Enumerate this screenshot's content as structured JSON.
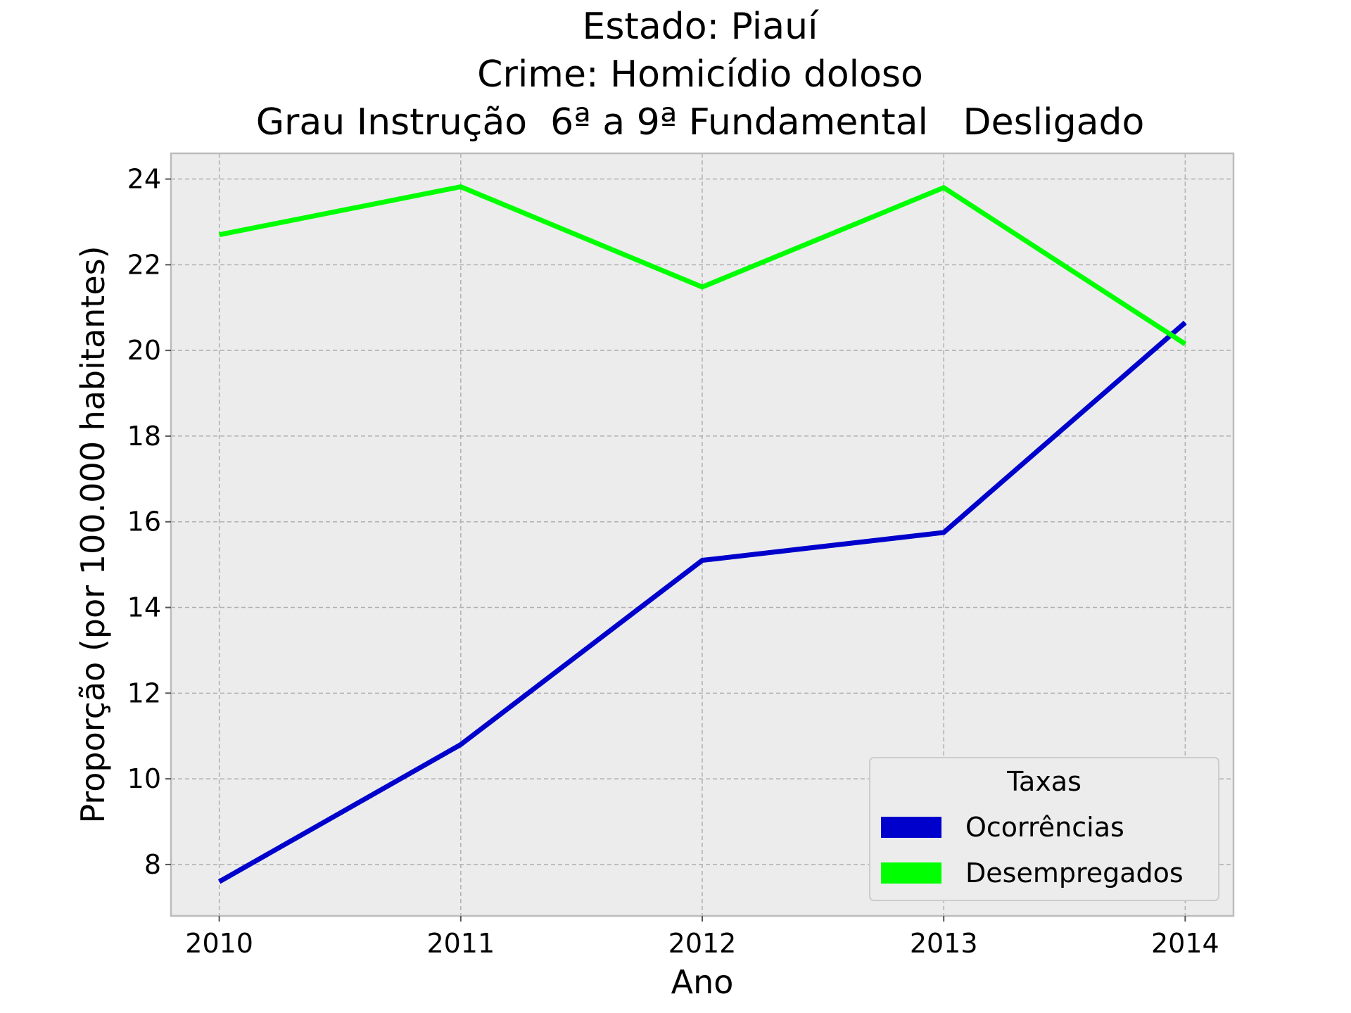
{
  "chart_data": {
    "type": "line",
    "title_lines": [
      "Estado: Piauí",
      "Crime: Homicídio doloso",
      "Grau Instrução  6ª a 9ª Fundamental   Desligado"
    ],
    "xlabel": "Ano",
    "ylabel": "Proporção (por 100.000 habitantes)",
    "x": [
      "2010",
      "2011",
      "2012",
      "2013",
      "2014"
    ],
    "xlim": [
      2009.8,
      2014.2
    ],
    "ylim": [
      6.8,
      24.6
    ],
    "yticks": [
      "8",
      "10",
      "12",
      "14",
      "16",
      "18",
      "20",
      "22",
      "24"
    ],
    "grid": true,
    "series": [
      {
        "name": "Ocorrências",
        "color": "#0000cc",
        "values": [
          7.6,
          10.8,
          15.1,
          15.75,
          20.65
        ]
      },
      {
        "name": "Desempregados",
        "color": "#00ff00",
        "values": [
          22.7,
          23.82,
          21.48,
          23.8,
          20.15
        ]
      }
    ],
    "legend": {
      "title": "Taxas",
      "position": "lower right"
    },
    "colors": {
      "plot_background": "#ececec",
      "grid": "#b0b0b0",
      "axes": "#bcbcbc"
    }
  }
}
